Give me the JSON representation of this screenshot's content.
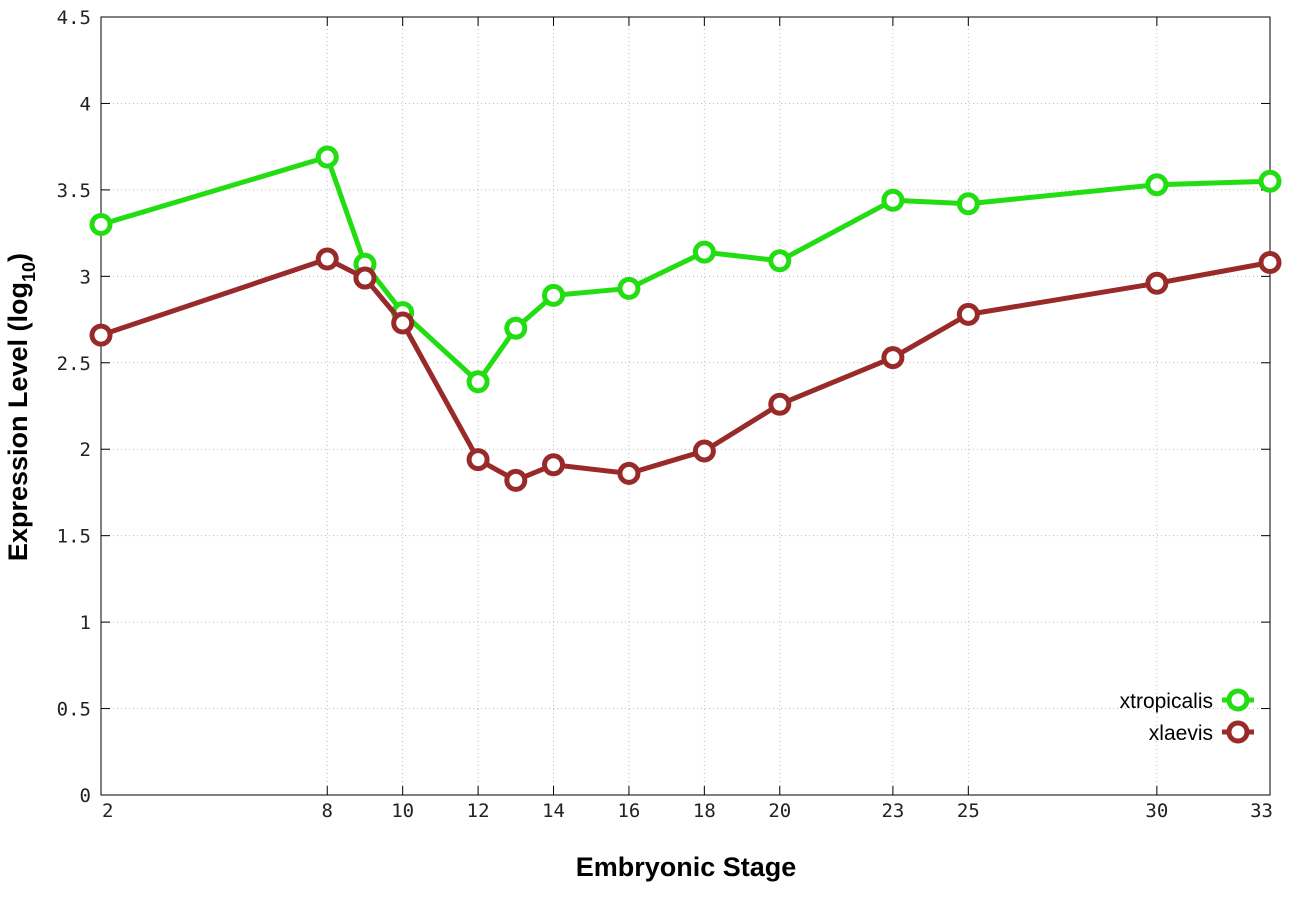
{
  "chart_data": {
    "type": "line",
    "title": "",
    "xlabel": "Embryonic Stage",
    "ylabel": "Expression Level (log",
    "ylabel_subscript": "10",
    "ylabel_close": ")",
    "xlim": [
      2,
      33
    ],
    "ylim": [
      0,
      4.5
    ],
    "x_ticks": [
      2,
      8,
      10,
      12,
      14,
      16,
      18,
      20,
      23,
      25,
      30,
      33
    ],
    "x_tick_labels": [
      "2",
      "8",
      "10",
      "12",
      "14",
      "16",
      "18",
      "20",
      "23",
      "25",
      "30",
      "33"
    ],
    "y_ticks": [
      0,
      0.5,
      1,
      1.5,
      2,
      2.5,
      3,
      3.5,
      4,
      4.5
    ],
    "y_tick_labels": [
      "0",
      "0.5",
      "1",
      "1.5",
      "2",
      "2.5",
      "3",
      "3.5",
      "4",
      "4.5"
    ],
    "grid": true,
    "legend_position": "bottom-right",
    "series": [
      {
        "name": "xtropicalis",
        "color": "#22dd11",
        "x": [
          2,
          8,
          9,
          10,
          12,
          13,
          14,
          16,
          18,
          20,
          23,
          25,
          30,
          33
        ],
        "values": [
          3.3,
          3.69,
          3.07,
          2.79,
          2.39,
          2.7,
          2.89,
          2.93,
          3.14,
          3.09,
          3.44,
          3.42,
          3.53,
          3.55
        ]
      },
      {
        "name": "xlaevis",
        "color": "#992a2a",
        "x": [
          2,
          8,
          9,
          10,
          12,
          13,
          14,
          16,
          18,
          20,
          23,
          25,
          30,
          33
        ],
        "values": [
          2.66,
          3.1,
          2.99,
          2.73,
          1.94,
          1.82,
          1.91,
          1.86,
          1.99,
          2.26,
          2.53,
          2.78,
          2.96,
          3.08
        ]
      }
    ]
  }
}
